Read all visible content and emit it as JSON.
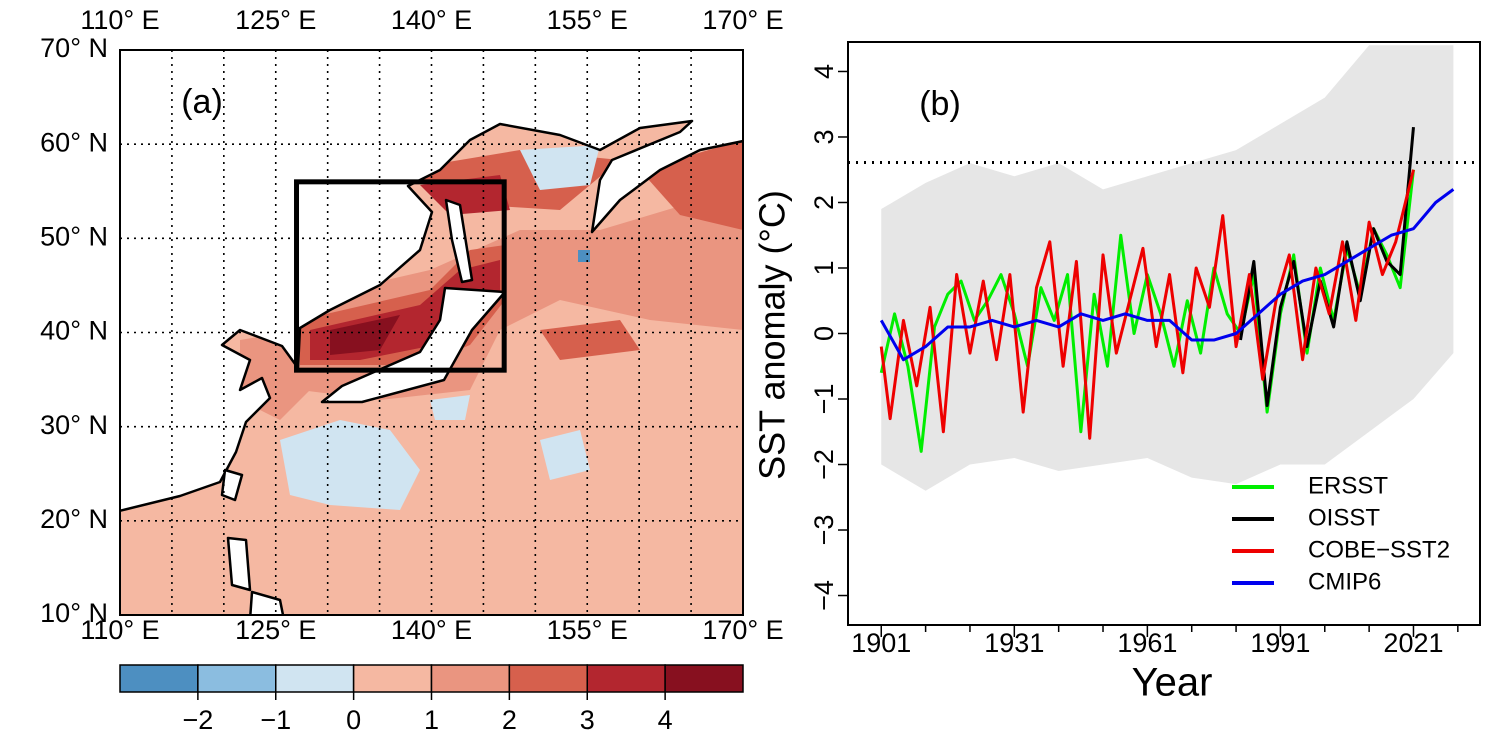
{
  "chart_data": [
    {
      "type": "map",
      "label": "(a)",
      "xlim": [
        110,
        170
      ],
      "ylim": [
        10,
        70
      ],
      "xticks": [
        {
          "value": 110,
          "label": "110° E"
        },
        {
          "value": 125,
          "label": "125° E"
        },
        {
          "value": 140,
          "label": "140° E"
        },
        {
          "value": 155,
          "label": "155° E"
        },
        {
          "value": 170,
          "label": "170° E"
        }
      ],
      "yticks": [
        {
          "value": 10,
          "label": "10° N"
        },
        {
          "value": 20,
          "label": "20° N"
        },
        {
          "value": 30,
          "label": "30° N"
        },
        {
          "value": 40,
          "label": "40° N"
        },
        {
          "value": 50,
          "label": "50° N"
        },
        {
          "value": 60,
          "label": "60° N"
        },
        {
          "value": 70,
          "label": "70° N"
        }
      ],
      "grid_lon": [
        115,
        120,
        125,
        130,
        135,
        140,
        145,
        150,
        155,
        160,
        165
      ],
      "grid_lat": [
        20,
        30,
        40,
        50,
        60
      ],
      "box": {
        "xlim": [
          127,
          147
        ],
        "ylim": [
          36,
          56
        ]
      },
      "colorbar": {
        "bins": [
          -3,
          -2,
          -1,
          0,
          1,
          2,
          3,
          4,
          5
        ],
        "colors": [
          "#4d8fc1",
          "#8bbde0",
          "#d0e4f1",
          "#f5b8a2",
          "#ea9580",
          "#d6604d",
          "#b3262f",
          "#87101f"
        ],
        "ticks": [
          {
            "value": -2,
            "label": "−2"
          },
          {
            "value": -1,
            "label": "−1"
          },
          0,
          1,
          2,
          3,
          4
        ]
      }
    },
    {
      "type": "line",
      "label": "(b)",
      "x_label": "Year",
      "y_label": "SST anomaly (°C)",
      "xlim": [
        1893.5,
        2036
      ],
      "ylim": [
        -4.45,
        4.45
      ],
      "xticks": [
        1901,
        1931,
        1961,
        1991,
        2021
      ],
      "xminor": [
        1911,
        1921,
        1941,
        1951,
        1971,
        1981,
        2001,
        2011,
        2031
      ],
      "yticks": [
        {
          "value": -4,
          "label": "−4"
        },
        {
          "value": -3,
          "label": "−3"
        },
        {
          "value": -2,
          "label": "−2"
        },
        {
          "value": -1,
          "label": "−1"
        },
        0,
        1,
        2,
        3,
        4
      ],
      "hline": 2.61,
      "range": {
        "color": "#e6e6e6",
        "x": [
          1901,
          1911,
          1921,
          1931,
          1941,
          1951,
          1961,
          1971,
          1981,
          1991,
          2001,
          2011,
          2021,
          2030
        ],
        "lower": [
          -2.0,
          -2.4,
          -2.0,
          -1.9,
          -2.1,
          -2.0,
          -1.9,
          -2.2,
          -2.3,
          -2.0,
          -2.0,
          -1.5,
          -1.0,
          -0.3
        ],
        "upper": [
          1.9,
          2.3,
          2.6,
          2.4,
          2.6,
          2.2,
          2.4,
          2.6,
          2.8,
          3.2,
          3.6,
          4.4,
          4.4,
          4.4
        ]
      },
      "series": [
        {
          "name": "ERSST",
          "color": "#00ee00",
          "x": [
            1901,
            1904,
            1907,
            1910,
            1913,
            1916,
            1919,
            1922,
            1925,
            1928,
            1931,
            1934,
            1937,
            1940,
            1943,
            1946,
            1949,
            1952,
            1955,
            1958,
            1961,
            1964,
            1967,
            1970,
            1973,
            1976,
            1979,
            1982,
            1985,
            1988,
            1991,
            1994,
            1997,
            2000,
            2003,
            2006,
            2009,
            2012,
            2015,
            2018,
            2021
          ],
          "values": [
            -0.6,
            0.3,
            -0.5,
            -1.8,
            0.1,
            0.6,
            0.8,
            0.2,
            0.5,
            0.9,
            0.3,
            -0.5,
            0.7,
            0.2,
            0.9,
            -1.5,
            0.6,
            -0.5,
            1.5,
            0.0,
            0.9,
            0.3,
            -0.5,
            0.5,
            -0.3,
            1.0,
            0.3,
            0.0,
            0.9,
            -1.2,
            0.3,
            1.2,
            -0.3,
            1.0,
            0.2,
            1.3,
            0.6,
            1.6,
            1.2,
            0.7,
            2.5
          ]
        },
        {
          "name": "OISST",
          "color": "#000000",
          "x": [
            1982,
            1985,
            1988,
            1991,
            1994,
            1997,
            2000,
            2003,
            2006,
            2009,
            2012,
            2015,
            2018,
            2021
          ],
          "values": [
            -0.1,
            1.1,
            -1.1,
            0.4,
            1.1,
            -0.2,
            0.8,
            0.1,
            1.4,
            0.5,
            1.6,
            1.1,
            0.9,
            3.15
          ]
        },
        {
          "name": "COBE−SST2",
          "color": "#ee0000",
          "x": [
            1901,
            1903,
            1906,
            1909,
            1912,
            1915,
            1918,
            1921,
            1924,
            1927,
            1930,
            1933,
            1936,
            1939,
            1942,
            1945,
            1948,
            1951,
            1954,
            1957,
            1960,
            1963,
            1966,
            1969,
            1972,
            1975,
            1978,
            1981,
            1984,
            1987,
            1990,
            1993,
            1996,
            1999,
            2002,
            2005,
            2008,
            2011,
            2014,
            2017,
            2021
          ],
          "values": [
            -0.2,
            -1.3,
            0.2,
            -0.8,
            0.4,
            -1.5,
            0.9,
            -0.3,
            0.8,
            -0.4,
            0.9,
            -1.2,
            0.7,
            1.4,
            -0.5,
            1.1,
            -1.6,
            1.2,
            -0.3,
            0.5,
            1.3,
            -0.2,
            0.9,
            -0.6,
            1.0,
            0.4,
            1.8,
            -0.2,
            0.9,
            -0.7,
            0.5,
            1.2,
            -0.4,
            1.0,
            0.3,
            1.4,
            0.2,
            1.7,
            0.9,
            1.4,
            2.5
          ]
        },
        {
          "name": "CMIP6",
          "color": "#0000ee",
          "x": [
            1901,
            1906,
            1911,
            1916,
            1921,
            1926,
            1931,
            1936,
            1941,
            1946,
            1951,
            1956,
            1961,
            1966,
            1971,
            1976,
            1981,
            1986,
            1991,
            1996,
            2001,
            2006,
            2011,
            2016,
            2021,
            2026,
            2030
          ],
          "values": [
            0.2,
            -0.4,
            -0.2,
            0.1,
            0.1,
            0.2,
            0.1,
            0.2,
            0.1,
            0.3,
            0.2,
            0.3,
            0.2,
            0.2,
            -0.1,
            -0.1,
            0.0,
            0.3,
            0.6,
            0.8,
            0.9,
            1.1,
            1.3,
            1.5,
            1.6,
            2.0,
            2.2
          ]
        }
      ],
      "legend": "bottom-right"
    }
  ]
}
